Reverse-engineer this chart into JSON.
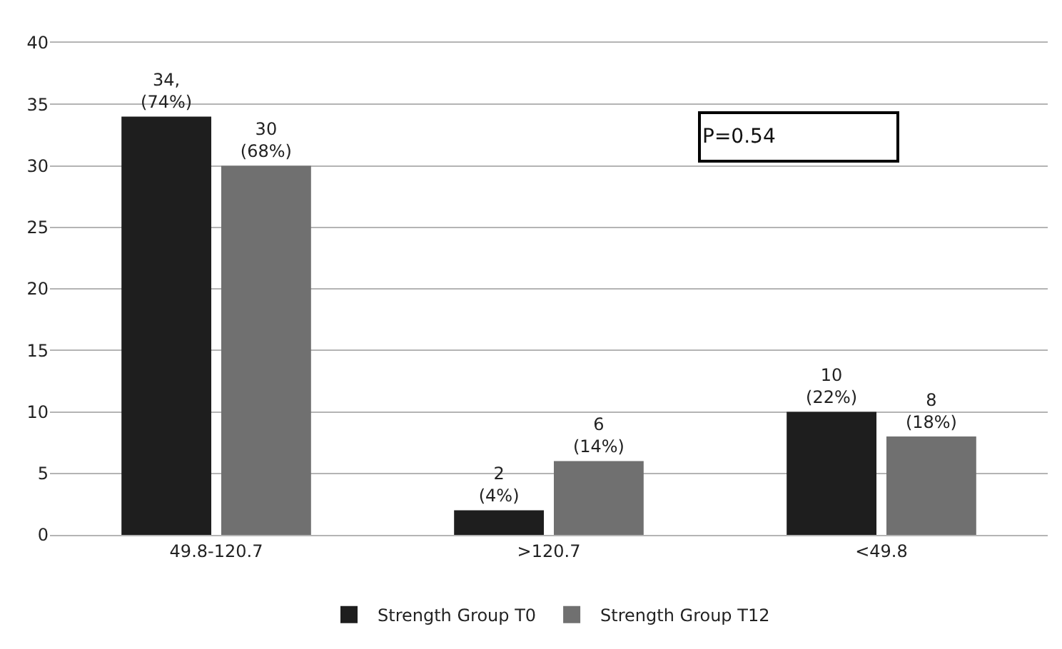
{
  "chart_data": {
    "type": "bar",
    "categories": [
      "49.8-120.7",
      ">120.7",
      "<49.8"
    ],
    "series": [
      {
        "name": "Strength Group T0",
        "color": "#1e1e1e",
        "values": [
          34,
          2,
          10
        ],
        "value_labels": [
          "34,\n(74%)",
          "2\n(4%)",
          "10\n(22%)"
        ]
      },
      {
        "name": "Strength Group T12",
        "color": "#707070",
        "values": [
          30,
          6,
          8
        ],
        "value_labels": [
          "30\n(68%)",
          "6\n(14%)",
          "8\n(18%)"
        ]
      }
    ],
    "ylim": [
      0,
      40
    ],
    "yticks": [
      0,
      5,
      10,
      15,
      20,
      25,
      30,
      35,
      40
    ],
    "grid": "y",
    "legend": "bottom",
    "annotations": [
      "P=0.54"
    ]
  }
}
